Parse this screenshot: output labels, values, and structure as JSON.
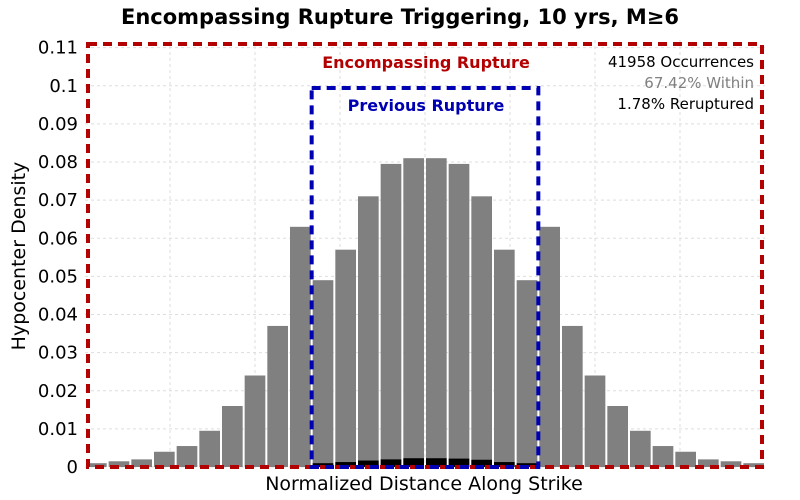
{
  "colors": {
    "bar_total": "#808080",
    "bar_reruptured": "#000000",
    "encompassing": "#b30000",
    "previous": "#0000b3",
    "within_text": "#808080",
    "grid": "#dddddd"
  },
  "chart_data": {
    "type": "bar",
    "title": "Encompassing Rupture Triggering, 10 yrs, M≥6",
    "xlabel": "Normalized Distance Along Strike",
    "ylabel": "Hypocenter Density",
    "ylim": [
      0,
      0.112
    ],
    "yticks": [
      0,
      0.01,
      0.02,
      0.03,
      0.04,
      0.05,
      0.06,
      0.07,
      0.08,
      0.09,
      0.1,
      0.11
    ],
    "ytick_labels": [
      "0",
      "0.01",
      "0.02",
      "0.03",
      "0.04",
      "0.05",
      "0.06",
      "0.07",
      "0.08",
      "0.09",
      "0.1",
      "0.11"
    ],
    "grid": true,
    "series": [
      {
        "values": [
          0.001,
          0.0015,
          0.002,
          0.004,
          0.0055,
          0.0095,
          0.016,
          0.024,
          0.037,
          0.063,
          0.049,
          0.057,
          0.071,
          0.0795,
          0.081,
          0.081,
          0.0795,
          0.071,
          0.057,
          0.049,
          0.063,
          0.037,
          0.024,
          0.016,
          0.0095,
          0.0055,
          0.004,
          0.002,
          0.0015,
          0.001
        ]
      },
      {
        "values": [
          0,
          0,
          0,
          0,
          0,
          0,
          0,
          0,
          0,
          0,
          0.001,
          0.0013,
          0.0017,
          0.002,
          0.0023,
          0.0023,
          0.0022,
          0.0019,
          0.0013,
          0.001,
          0,
          0,
          0,
          0,
          0,
          0,
          0,
          0,
          0,
          0
        ]
      }
    ],
    "annotations": {
      "encompassing_label": "Encompassing Rupture",
      "previous_label": "Previous Rupture",
      "occurrences": "41958 Occurrences",
      "within": "67.42% Within",
      "reruptured": "1.78% Reruptured"
    }
  }
}
